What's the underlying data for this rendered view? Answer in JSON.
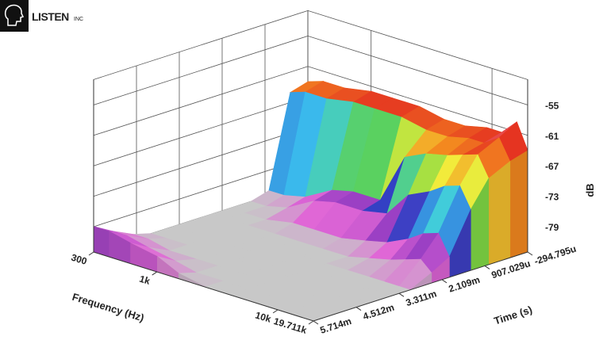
{
  "logo": {
    "name": "LISTEN",
    "suffix": "INC"
  },
  "chart_data": {
    "type": "waterfall3d",
    "x_label": "Frequency (Hz)",
    "y_label": "Time (s)",
    "z_label": "dB",
    "x_log": true,
    "xlim": [
      300,
      19711
    ],
    "xticks": [
      300,
      {
        "value": 1000,
        "label": "1k"
      },
      {
        "value": 10000,
        "label": "10k"
      },
      {
        "value": 19711,
        "label": "19.711k"
      }
    ],
    "ylim": [
      -0.000294795,
      0.005714
    ],
    "yticks": [
      {
        "value": -0.000294795,
        "label": "-294.795u"
      },
      {
        "value": 0.000907029,
        "label": "907.029u"
      },
      {
        "value": 0.002109,
        "label": "2.109m"
      },
      {
        "value": 0.003311,
        "label": "3.311m"
      },
      {
        "value": 0.004512,
        "label": "4.512m"
      },
      {
        "value": 0.005714,
        "label": "5.714m"
      }
    ],
    "zlim": [
      -84,
      -50
    ],
    "zticks": [
      -79,
      -73,
      -67,
      -61,
      -55
    ],
    "colorscale": [
      "#c8c8c8",
      "#e066d6",
      "#9a3fc4",
      "#3040c4",
      "#3ccbf2",
      "#5fd248",
      "#f2ee3c",
      "#f38a1f",
      "#e22222",
      "#fff0f0"
    ],
    "floor_color": "#c8c8c8",
    "x": [
      300,
      400,
      600,
      1000,
      1500,
      2500,
      4000,
      6000,
      9000,
      12000,
      16000,
      19711
    ],
    "y": [
      -0.0003,
      0.0002,
      0.0008,
      0.0013,
      0.0019,
      0.0024,
      0.003,
      0.0035,
      0.0041,
      0.0046,
      0.0052,
      0.0057
    ],
    "z": [
      [
        -64,
        -63,
        -63,
        -62,
        -62,
        -62,
        -63,
        -63,
        -62,
        -62,
        -59,
        -64
      ],
      [
        -65,
        -64,
        -64,
        -63,
        -63,
        -63,
        -64,
        -64,
        -63,
        -63,
        -61,
        -65
      ],
      [
        -83,
        -83,
        -82,
        -79,
        -78,
        -78,
        -68,
        -66,
        -65,
        -64,
        -63,
        -67
      ],
      [
        -84,
        -84,
        -83,
        -80,
        -79,
        -79,
        -78,
        -73,
        -71,
        -69,
        -68,
        -72
      ],
      [
        -84,
        -84,
        -84,
        -83,
        -83,
        -83,
        -82,
        -81,
        -79,
        -77,
        -76,
        -80
      ],
      [
        -84,
        -84,
        -84,
        -84,
        -84,
        -84,
        -84,
        -83,
        -82,
        -81,
        -80,
        -82
      ],
      [
        -84,
        -84,
        -84,
        -84,
        -84,
        -84,
        -84,
        -84,
        -84,
        -84,
        -84,
        -84
      ],
      [
        -84,
        -84,
        -84,
        -84,
        -84,
        -84,
        -84,
        -84,
        -84,
        -84,
        -84,
        -84
      ],
      [
        -84,
        -84,
        -84,
        -84,
        -84,
        -84,
        -84,
        -84,
        -84,
        -84,
        -84,
        -84
      ],
      [
        -83,
        -83,
        -84,
        -84,
        -84,
        -84,
        -84,
        -84,
        -84,
        -84,
        -84,
        -84
      ],
      [
        -81,
        -81,
        -82,
        -83,
        -84,
        -84,
        -84,
        -84,
        -84,
        -84,
        -84,
        -84
      ],
      [
        -79,
        -79,
        -80,
        -81,
        -83,
        -84,
        -84,
        -84,
        -84,
        -84,
        -84,
        -84
      ]
    ]
  }
}
